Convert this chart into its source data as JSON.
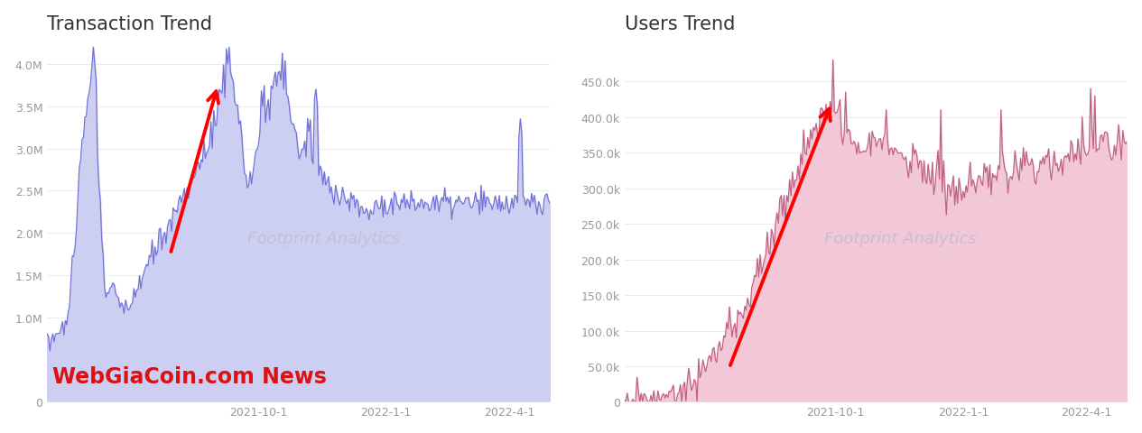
{
  "title_left": "Transaction Trend",
  "title_right": "Users Trend",
  "bg_color": "#ffffff",
  "left_fill_color": "#cccef2",
  "left_line_color": "#7070d8",
  "right_fill_color": "#f2c8d8",
  "right_line_color": "#c06080",
  "left_ylim": [
    0,
    4300000
  ],
  "right_ylim": [
    0,
    510000
  ],
  "left_yticks": [
    0,
    1000000,
    1500000,
    2000000,
    2500000,
    3000000,
    3500000,
    4000000
  ],
  "left_yticklabels": [
    "0",
    "1.0M",
    "1.5M",
    "2.0M",
    "2.5M",
    "3.0M",
    "3.5M",
    "4.0M"
  ],
  "right_yticks": [
    0,
    50000,
    100000,
    150000,
    200000,
    250000,
    300000,
    350000,
    400000,
    450000
  ],
  "right_yticklabels": [
    "0",
    "50.0k",
    "100.0k",
    "150.0k",
    "200.0k",
    "250.0k",
    "300.0k",
    "350.0k",
    "400.0k",
    "450.0k"
  ],
  "xtick_labels": [
    "2021-10-1",
    "2022-1-1",
    "2022-4-1"
  ],
  "watermark": "Footprint Analytics",
  "watermark_color": "#c0c0d0",
  "annotation_left": "WebGiaCoin.com News",
  "annotation_color": "#dd1111",
  "title_fontsize": 15,
  "tick_fontsize": 9,
  "watermark_fontsize": 13,
  "annotation_fontsize": 17
}
